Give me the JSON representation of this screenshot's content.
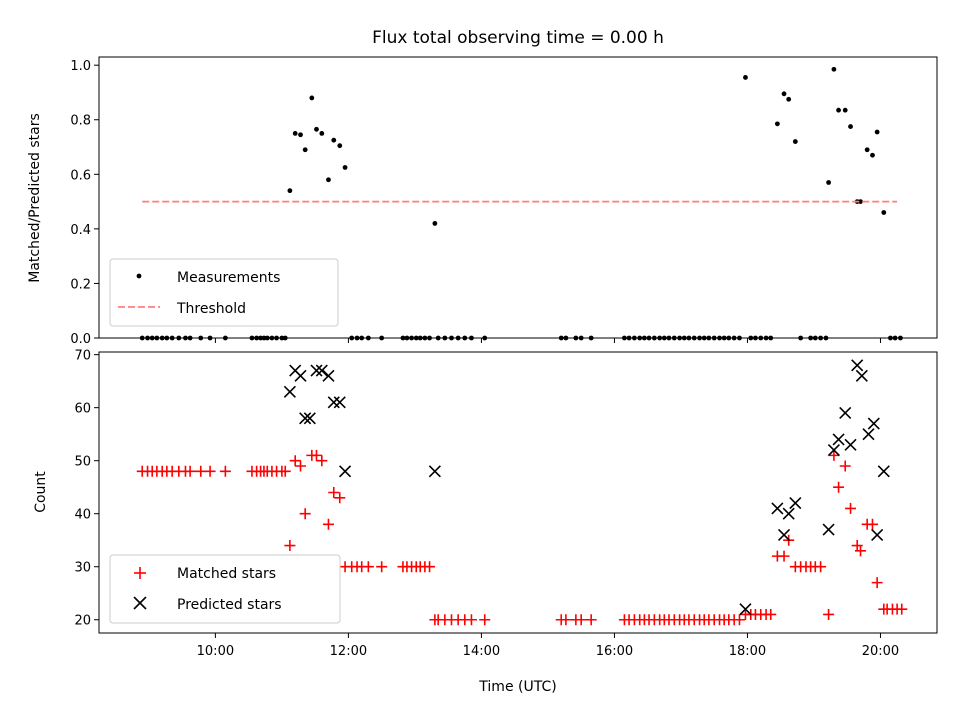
{
  "title": "Flux total observing time = 0.00 h",
  "chart_data": [
    {
      "type": "scatter",
      "panel": "top",
      "ylabel": "Matched/Predicted stars",
      "xlabel": "",
      "xlim": [
        8.25,
        20.85
      ],
      "ylim": [
        0.0,
        1.03
      ],
      "yticks": [
        0.0,
        0.2,
        0.4,
        0.6,
        0.8,
        1.0
      ],
      "ytick_labels": [
        "0.0",
        "0.2",
        "0.4",
        "0.6",
        "0.8",
        "1.0"
      ],
      "xticks": [
        10,
        12,
        14,
        16,
        18,
        20
      ],
      "legend_position": "lower-left",
      "series": [
        {
          "name": "Measurements",
          "marker": "dot",
          "color": "#000000",
          "points": [
            [
              8.9,
              0
            ],
            [
              8.98,
              0
            ],
            [
              9.05,
              0
            ],
            [
              9.12,
              0
            ],
            [
              9.2,
              0
            ],
            [
              9.27,
              0
            ],
            [
              9.35,
              0
            ],
            [
              9.45,
              0
            ],
            [
              9.55,
              0
            ],
            [
              9.62,
              0
            ],
            [
              9.78,
              0
            ],
            [
              9.92,
              0
            ],
            [
              10.15,
              0
            ],
            [
              10.55,
              0
            ],
            [
              10.62,
              0
            ],
            [
              10.68,
              0
            ],
            [
              10.73,
              0
            ],
            [
              10.78,
              0
            ],
            [
              10.85,
              0
            ],
            [
              10.92,
              0
            ],
            [
              11.0,
              0
            ],
            [
              11.05,
              0
            ],
            [
              11.12,
              0.54
            ],
            [
              11.2,
              0.75
            ],
            [
              11.28,
              0.745
            ],
            [
              11.35,
              0.69
            ],
            [
              11.45,
              0.88
            ],
            [
              11.52,
              0.765
            ],
            [
              11.6,
              0.75
            ],
            [
              11.7,
              0.58
            ],
            [
              11.78,
              0.725
            ],
            [
              11.87,
              0.705
            ],
            [
              11.95,
              0.625
            ],
            [
              12.05,
              0
            ],
            [
              12.13,
              0
            ],
            [
              12.2,
              0
            ],
            [
              12.3,
              0
            ],
            [
              12.5,
              0
            ],
            [
              12.82,
              0
            ],
            [
              12.88,
              0
            ],
            [
              12.95,
              0
            ],
            [
              13.02,
              0
            ],
            [
              13.08,
              0
            ],
            [
              13.15,
              0
            ],
            [
              13.22,
              0
            ],
            [
              13.3,
              0.42
            ],
            [
              13.35,
              0
            ],
            [
              13.45,
              0
            ],
            [
              13.55,
              0
            ],
            [
              13.65,
              0
            ],
            [
              13.75,
              0
            ],
            [
              13.85,
              0
            ],
            [
              14.05,
              0
            ],
            [
              15.2,
              0
            ],
            [
              15.27,
              0
            ],
            [
              15.42,
              0
            ],
            [
              15.5,
              0
            ],
            [
              15.65,
              0
            ],
            [
              16.15,
              0
            ],
            [
              16.22,
              0
            ],
            [
              16.3,
              0
            ],
            [
              16.38,
              0
            ],
            [
              16.45,
              0
            ],
            [
              16.52,
              0
            ],
            [
              16.6,
              0
            ],
            [
              16.68,
              0
            ],
            [
              16.75,
              0
            ],
            [
              16.82,
              0
            ],
            [
              16.9,
              0
            ],
            [
              16.98,
              0
            ],
            [
              17.05,
              0
            ],
            [
              17.12,
              0
            ],
            [
              17.2,
              0
            ],
            [
              17.28,
              0
            ],
            [
              17.35,
              0
            ],
            [
              17.42,
              0
            ],
            [
              17.5,
              0
            ],
            [
              17.58,
              0
            ],
            [
              17.65,
              0
            ],
            [
              17.72,
              0
            ],
            [
              17.8,
              0
            ],
            [
              17.88,
              0
            ],
            [
              17.97,
              0.955
            ],
            [
              18.05,
              0
            ],
            [
              18.12,
              0
            ],
            [
              18.2,
              0
            ],
            [
              18.28,
              0
            ],
            [
              18.35,
              0
            ],
            [
              18.45,
              0.785
            ],
            [
              18.55,
              0.895
            ],
            [
              18.62,
              0.875
            ],
            [
              18.72,
              0.72
            ],
            [
              18.8,
              0
            ],
            [
              18.95,
              0
            ],
            [
              19.02,
              0
            ],
            [
              19.1,
              0
            ],
            [
              19.18,
              0
            ],
            [
              19.22,
              0.57
            ],
            [
              19.3,
              0.985
            ],
            [
              19.37,
              0.835
            ],
            [
              19.47,
              0.835
            ],
            [
              19.55,
              0.775
            ],
            [
              19.65,
              0.5
            ],
            [
              19.7,
              0.5
            ],
            [
              19.8,
              0.69
            ],
            [
              19.88,
              0.67
            ],
            [
              19.95,
              0.755
            ],
            [
              20.05,
              0.46
            ],
            [
              20.15,
              0
            ],
            [
              20.22,
              0
            ],
            [
              20.3,
              0
            ]
          ]
        },
        {
          "name": "Threshold",
          "style": "dashed",
          "color": "#ff7f7f",
          "x": [
            8.9,
            20.25
          ],
          "y": [
            0.5,
            0.5
          ]
        }
      ]
    },
    {
      "type": "scatter",
      "panel": "bottom",
      "xlabel": "Time (UTC)",
      "ylabel": "Count",
      "xlim": [
        8.25,
        20.85
      ],
      "ylim": [
        17.5,
        70.5
      ],
      "yticks": [
        20,
        30,
        40,
        50,
        60,
        70
      ],
      "ytick_labels": [
        "20",
        "30",
        "40",
        "50",
        "60",
        "70"
      ],
      "xticks": [
        10,
        12,
        14,
        16,
        18,
        20
      ],
      "xtick_labels": [
        "10:00",
        "12:00",
        "14:00",
        "16:00",
        "18:00",
        "20:00"
      ],
      "legend_position": "lower-left",
      "series": [
        {
          "name": "Matched stars",
          "marker": "plus",
          "color": "#ff0000",
          "points": [
            [
              8.9,
              48
            ],
            [
              8.98,
              48
            ],
            [
              9.05,
              48
            ],
            [
              9.12,
              48
            ],
            [
              9.2,
              48
            ],
            [
              9.27,
              48
            ],
            [
              9.35,
              48
            ],
            [
              9.45,
              48
            ],
            [
              9.55,
              48
            ],
            [
              9.62,
              48
            ],
            [
              9.78,
              48
            ],
            [
              9.92,
              48
            ],
            [
              10.15,
              48
            ],
            [
              10.55,
              48
            ],
            [
              10.62,
              48
            ],
            [
              10.68,
              48
            ],
            [
              10.73,
              48
            ],
            [
              10.78,
              48
            ],
            [
              10.85,
              48
            ],
            [
              10.92,
              48
            ],
            [
              11.0,
              48
            ],
            [
              11.05,
              48
            ],
            [
              11.12,
              34
            ],
            [
              11.2,
              50
            ],
            [
              11.28,
              49
            ],
            [
              11.35,
              40
            ],
            [
              11.45,
              51
            ],
            [
              11.52,
              51
            ],
            [
              11.6,
              50
            ],
            [
              11.7,
              38
            ],
            [
              11.78,
              44
            ],
            [
              11.87,
              43
            ],
            [
              11.95,
              30
            ],
            [
              12.05,
              30
            ],
            [
              12.13,
              30
            ],
            [
              12.2,
              30
            ],
            [
              12.3,
              30
            ],
            [
              12.5,
              30
            ],
            [
              12.82,
              30
            ],
            [
              12.88,
              30
            ],
            [
              12.95,
              30
            ],
            [
              13.02,
              30
            ],
            [
              13.08,
              30
            ],
            [
              13.15,
              30
            ],
            [
              13.22,
              30
            ],
            [
              13.3,
              20
            ],
            [
              13.35,
              20
            ],
            [
              13.45,
              20
            ],
            [
              13.55,
              20
            ],
            [
              13.65,
              20
            ],
            [
              13.75,
              20
            ],
            [
              13.85,
              20
            ],
            [
              14.05,
              20
            ],
            [
              15.2,
              20
            ],
            [
              15.27,
              20
            ],
            [
              15.42,
              20
            ],
            [
              15.5,
              20
            ],
            [
              15.65,
              20
            ],
            [
              16.15,
              20
            ],
            [
              16.22,
              20
            ],
            [
              16.3,
              20
            ],
            [
              16.38,
              20
            ],
            [
              16.45,
              20
            ],
            [
              16.52,
              20
            ],
            [
              16.6,
              20
            ],
            [
              16.68,
              20
            ],
            [
              16.75,
              20
            ],
            [
              16.82,
              20
            ],
            [
              16.9,
              20
            ],
            [
              16.98,
              20
            ],
            [
              17.05,
              20
            ],
            [
              17.12,
              20
            ],
            [
              17.2,
              20
            ],
            [
              17.28,
              20
            ],
            [
              17.35,
              20
            ],
            [
              17.42,
              20
            ],
            [
              17.5,
              20
            ],
            [
              17.58,
              20
            ],
            [
              17.65,
              20
            ],
            [
              17.72,
              20
            ],
            [
              17.8,
              20
            ],
            [
              17.88,
              20
            ],
            [
              17.97,
              21
            ],
            [
              18.05,
              21
            ],
            [
              18.12,
              21
            ],
            [
              18.2,
              21
            ],
            [
              18.28,
              21
            ],
            [
              18.35,
              21
            ],
            [
              18.45,
              32
            ],
            [
              18.55,
              32
            ],
            [
              18.62,
              35
            ],
            [
              18.72,
              30
            ],
            [
              18.8,
              30
            ],
            [
              18.88,
              30
            ],
            [
              18.95,
              30
            ],
            [
              19.02,
              30
            ],
            [
              19.1,
              30
            ],
            [
              19.22,
              21
            ],
            [
              19.3,
              51
            ],
            [
              19.37,
              45
            ],
            [
              19.47,
              49
            ],
            [
              19.55,
              41
            ],
            [
              19.65,
              34
            ],
            [
              19.7,
              33
            ],
            [
              19.8,
              38
            ],
            [
              19.88,
              38
            ],
            [
              19.95,
              27
            ],
            [
              20.05,
              22
            ],
            [
              20.1,
              22
            ],
            [
              20.18,
              22
            ],
            [
              20.25,
              22
            ],
            [
              20.32,
              22
            ]
          ]
        },
        {
          "name": "Predicted stars",
          "marker": "x",
          "color": "#000000",
          "points": [
            [
              11.12,
              63
            ],
            [
              11.2,
              67
            ],
            [
              11.28,
              66
            ],
            [
              11.35,
              58
            ],
            [
              11.42,
              58
            ],
            [
              11.52,
              67
            ],
            [
              11.6,
              67
            ],
            [
              11.7,
              66
            ],
            [
              11.78,
              61
            ],
            [
              11.87,
              61
            ],
            [
              11.95,
              48
            ],
            [
              13.3,
              48
            ],
            [
              17.97,
              22
            ],
            [
              18.45,
              41
            ],
            [
              18.55,
              36
            ],
            [
              18.62,
              40
            ],
            [
              18.72,
              42
            ],
            [
              19.22,
              37
            ],
            [
              19.3,
              52
            ],
            [
              19.37,
              54
            ],
            [
              19.47,
              59
            ],
            [
              19.55,
              53
            ],
            [
              19.65,
              68
            ],
            [
              19.72,
              66
            ],
            [
              19.82,
              55
            ],
            [
              19.9,
              57
            ],
            [
              19.95,
              36
            ],
            [
              20.05,
              48
            ]
          ]
        }
      ]
    }
  ]
}
